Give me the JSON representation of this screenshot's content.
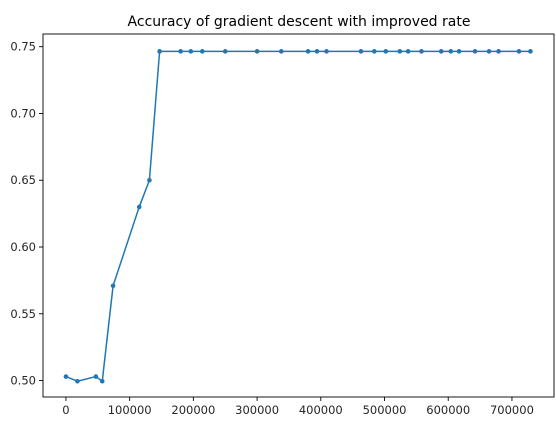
{
  "chart_data": {
    "type": "line",
    "title": "Accuracy of gradient descent with improved rate",
    "xlabel": "",
    "ylabel": "",
    "xlim": [
      -36000,
      766000
    ],
    "ylim": [
      0.4877,
      0.7595
    ],
    "x_ticks": [
      0,
      100000,
      200000,
      300000,
      400000,
      500000,
      600000,
      700000
    ],
    "x_tick_labels": [
      "0",
      "100000",
      "200000",
      "300000",
      "400000",
      "500000",
      "600000",
      "700000"
    ],
    "y_ticks": [
      0.5,
      0.55,
      0.6,
      0.65,
      0.7,
      0.75
    ],
    "y_tick_labels": [
      "0.50",
      "0.55",
      "0.60",
      "0.65",
      "0.70",
      "0.75"
    ],
    "grid": false,
    "series": [
      {
        "color": "#1f77b4",
        "marker": "circle",
        "x": [
          0,
          18000,
          47000,
          57000,
          74000,
          115000,
          131000,
          147000,
          180000,
          196000,
          214000,
          250000,
          300000,
          338000,
          380000,
          394000,
          409000,
          463000,
          484000,
          502000,
          524000,
          537000,
          558000,
          589000,
          604000,
          617000,
          642000,
          664000,
          679000,
          711000,
          729000
        ],
        "y": [
          0.503,
          0.4995,
          0.503,
          0.4995,
          0.571,
          0.63,
          0.65,
          0.7465,
          0.7465,
          0.7465,
          0.7465,
          0.7465,
          0.7465,
          0.7465,
          0.7465,
          0.7465,
          0.7465,
          0.7465,
          0.7465,
          0.7465,
          0.7465,
          0.7465,
          0.7465,
          0.7465,
          0.7465,
          0.7465,
          0.7465,
          0.7465,
          0.7465,
          0.7465,
          0.7465
        ]
      }
    ]
  }
}
